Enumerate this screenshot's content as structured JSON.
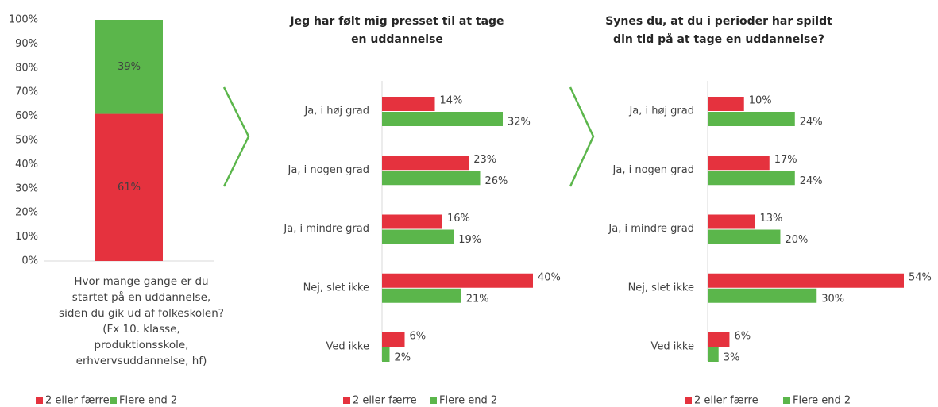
{
  "chart_data": [
    {
      "type": "stacked_bar",
      "categories": [
        "Hvor mange gange er du startet på en uddannelse, siden du gik ud af folkeskolen? (Fx 10. klasse, produktionsskole, erhvervsuddannelse, hf)"
      ],
      "series": [
        {
          "name": "2 eller færre",
          "color": "#e5323e",
          "values": [
            61
          ],
          "value_labels": [
            "61%"
          ]
        },
        {
          "name": "Flere end 2",
          "color": "#5bb64b",
          "values": [
            39
          ],
          "value_labels": [
            "39%"
          ]
        }
      ],
      "ylim": [
        0,
        100
      ],
      "yticks": [
        {
          "value": 0,
          "label": "0%"
        },
        {
          "value": 10,
          "label": "10%"
        },
        {
          "value": 20,
          "label": "20%"
        },
        {
          "value": 30,
          "label": "30%"
        },
        {
          "value": 40,
          "label": "40%"
        },
        {
          "value": 50,
          "label": "50%"
        },
        {
          "value": 60,
          "label": "60%"
        },
        {
          "value": 70,
          "label": "70%"
        },
        {
          "value": 80,
          "label": "80%"
        },
        {
          "value": 90,
          "label": "90%"
        },
        {
          "value": 100,
          "label": "100%"
        }
      ],
      "legend": "bottom"
    },
    {
      "type": "hbar",
      "title": "Jeg har følt mig presset til at tage en uddannelse",
      "categories": [
        "Ja, i høj grad",
        "Ja, i nogen grad",
        "Ja, i mindre grad",
        "Nej, slet ikke",
        "Ved ikke"
      ],
      "series": [
        {
          "name": "2 eller færre",
          "color": "#e5323e",
          "values": [
            14,
            23,
            16,
            40,
            6
          ],
          "value_labels": [
            "14%",
            "23%",
            "16%",
            "40%",
            "6%"
          ]
        },
        {
          "name": "Flere end 2",
          "color": "#5bb64b",
          "values": [
            32,
            26,
            19,
            21,
            2
          ],
          "value_labels": [
            "32%",
            "26%",
            "19%",
            "21%",
            "2%"
          ]
        }
      ],
      "legend": "bottom"
    },
    {
      "type": "hbar",
      "title": "Synes du, at du i perioder har spildt din tid på at tage en uddannelse?",
      "categories": [
        "Ja, i høj grad",
        "Ja, i nogen grad",
        "Ja, i mindre grad",
        "Nej, slet ikke",
        "Ved ikke"
      ],
      "series": [
        {
          "name": "2 eller færre",
          "color": "#e5323e",
          "values": [
            10,
            17,
            13,
            54,
            6
          ],
          "value_labels": [
            "10%",
            "17%",
            "13%",
            "54%",
            "6%"
          ]
        },
        {
          "name": "Flere end 2",
          "color": "#5bb64b",
          "values": [
            24,
            24,
            20,
            30,
            3
          ],
          "value_labels": [
            "24%",
            "24%",
            "20%",
            "30%",
            "3%"
          ]
        }
      ],
      "legend": "bottom"
    }
  ]
}
